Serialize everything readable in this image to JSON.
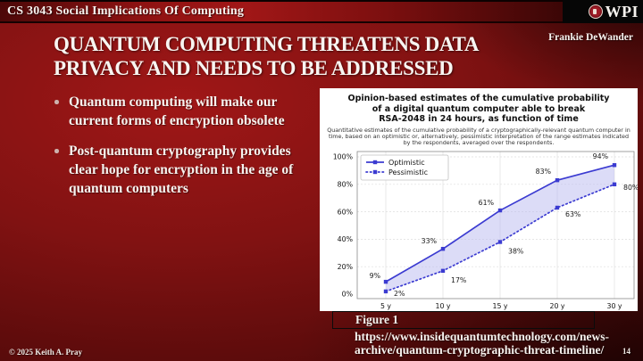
{
  "banner": {
    "course": "CS 3043 Social Implications Of Computing",
    "logo_text": "WPI"
  },
  "header": {
    "title_lines": [
      "QUANTUM COMPUTING THREATENS DATA",
      "PRIVACY AND NEEDS TO BE ADDRESSED"
    ],
    "author": "Frankie DeWander"
  },
  "bullets": [
    "Quantum computing will make our current forms of encryption obsolete",
    "Post-quantum cryptography provides clear hope for encryption in the age of quantum computers"
  ],
  "figure": {
    "label": "Figure 1",
    "url_lines": [
      "https://www.insidequantumtechnology.com/news-",
      "archive/quantum-cryptographic-threat-timeline/"
    ]
  },
  "footer": {
    "copyright": "© 2025 Keith A. Pray",
    "page_number": "14"
  },
  "chart_data": {
    "type": "line",
    "title_lines": [
      "Opinion-based estimates of the cumulative probability",
      "of a digital quantum computer able to break",
      "RSA-2048 in 24 hours, as function of time"
    ],
    "subtitle": "Quantitative estimates of the cumulative probability of a cryptographically-relevant quantum computer in time, based on an optimistic or, alternatively, pessimistic interpretation of the range estimates indicated by the respondents, averaged over the respondents.",
    "x_categories": [
      "5 y",
      "10 y",
      "15 y",
      "20 y",
      "30 y"
    ],
    "series": [
      {
        "name": "Optimistic",
        "style": "solid",
        "values": [
          9,
          33,
          61,
          83,
          94
        ]
      },
      {
        "name": "Pessimistic",
        "style": "dotted",
        "values": [
          2,
          17,
          38,
          63,
          80
        ]
      }
    ],
    "y_ticks": [
      0,
      20,
      40,
      60,
      80,
      100
    ],
    "y_tick_labels": [
      "0%",
      "20%",
      "40%",
      "60%",
      "80%",
      "100%"
    ],
    "ylim": [
      0,
      100
    ],
    "grid": true,
    "legend_position": "top-left",
    "line_color": "#3b3bd1",
    "fill_color": "#b9b9f0",
    "label_suffix": "%"
  }
}
